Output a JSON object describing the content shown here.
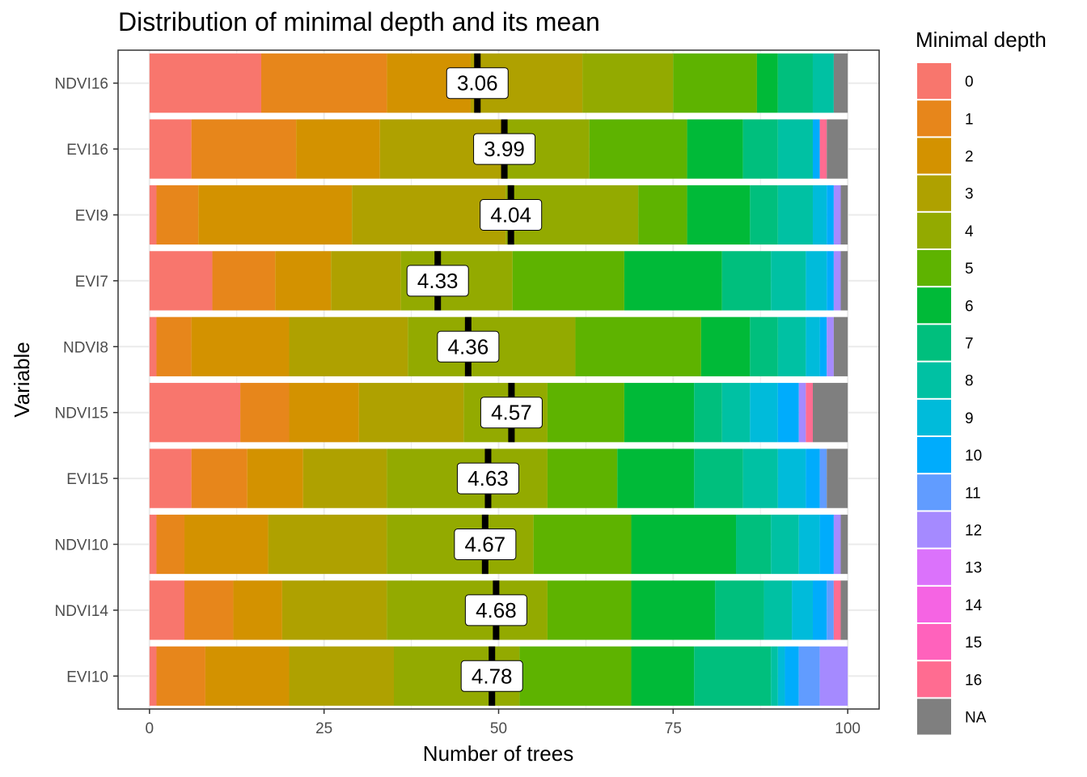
{
  "chart_data": {
    "type": "bar",
    "title": "Distribution of minimal depth and its mean",
    "xlabel": "Number of trees",
    "ylabel": "Variable",
    "xlim": [
      -4.5,
      104.5
    ],
    "x_ticks": [
      0,
      25,
      50,
      75,
      100
    ],
    "grid": true,
    "legend": {
      "title": "Minimal depth",
      "position": "right",
      "entries": [
        "0",
        "1",
        "2",
        "3",
        "4",
        "5",
        "6",
        "7",
        "8",
        "9",
        "10",
        "11",
        "12",
        "13",
        "14",
        "15",
        "16",
        "NA"
      ],
      "colors": [
        "#F8766D",
        "#E7861B",
        "#D39200",
        "#AFA100",
        "#93AA00",
        "#5EB300",
        "#00BA38",
        "#00BF7D",
        "#00C1A3",
        "#00BBDA",
        "#00ACFC",
        "#619CFF",
        "#A58AFF",
        "#DB72FB",
        "#F564E3",
        "#FF62BC",
        "#FF6C91",
        "#7F7F7F"
      ]
    },
    "bars": [
      {
        "variable": "NDVI16",
        "mean_label": "3.06",
        "mean": 3.06,
        "counts": [
          16,
          18,
          12,
          16,
          13,
          12,
          3,
          5,
          3,
          0,
          0,
          0,
          0,
          0,
          0,
          0,
          0,
          2
        ]
      },
      {
        "variable": "EVI16",
        "mean_label": "3.99",
        "mean": 3.99,
        "counts": [
          6,
          15,
          12,
          18,
          12,
          14,
          8,
          5,
          5,
          0,
          1,
          0,
          0,
          0,
          0,
          0,
          1,
          3
        ]
      },
      {
        "variable": "EVI9",
        "mean_label": "4.04",
        "mean": 4.04,
        "counts": [
          1,
          6,
          22,
          22,
          19,
          7,
          9,
          4,
          5,
          2,
          1,
          0,
          1,
          0,
          0,
          0,
          0,
          1
        ]
      },
      {
        "variable": "EVI7",
        "mean_label": "4.33",
        "mean": 4.33,
        "counts": [
          9,
          9,
          8,
          10,
          16,
          16,
          14,
          7,
          5,
          3,
          1,
          0,
          1,
          0,
          0,
          0,
          0,
          1
        ]
      },
      {
        "variable": "NDVI8",
        "mean_label": "4.36",
        "mean": 4.36,
        "counts": [
          1,
          5,
          14,
          17,
          24,
          18,
          7,
          4,
          4,
          2,
          1,
          0,
          1,
          0,
          0,
          0,
          0,
          2
        ]
      },
      {
        "variable": "NDVI15",
        "mean_label": "4.57",
        "mean": 4.57,
        "counts": [
          13,
          7,
          10,
          15,
          12,
          11,
          10,
          4,
          4,
          4,
          3,
          0,
          1,
          0,
          0,
          0,
          1,
          5
        ]
      },
      {
        "variable": "EVI15",
        "mean_label": "4.63",
        "mean": 4.63,
        "counts": [
          6,
          8,
          8,
          12,
          23,
          10,
          11,
          7,
          5,
          4,
          2,
          1,
          0,
          0,
          0,
          0,
          0,
          3
        ]
      },
      {
        "variable": "NDVI10",
        "mean_label": "4.67",
        "mean": 4.67,
        "counts": [
          1,
          4,
          12,
          17,
          21,
          14,
          15,
          5,
          4,
          3,
          2,
          0,
          1,
          0,
          0,
          0,
          0,
          1
        ]
      },
      {
        "variable": "NDVI14",
        "mean_label": "4.68",
        "mean": 4.68,
        "counts": [
          5,
          7,
          7,
          15,
          23,
          12,
          12,
          7,
          4,
          3,
          2,
          1,
          0,
          0,
          0,
          0,
          1,
          1
        ]
      },
      {
        "variable": "EVI10",
        "mean_label": "4.78",
        "mean": 4.78,
        "counts": [
          1,
          7,
          12,
          15,
          18,
          16,
          9,
          11,
          1,
          1,
          2,
          3,
          4,
          0,
          0,
          0,
          0,
          0
        ]
      }
    ],
    "note": "counts are number of trees per minimal-depth category (0..16, NA), read from the stacked bar widths; mean markers positioned as cumulative share up to the mean depth"
  }
}
